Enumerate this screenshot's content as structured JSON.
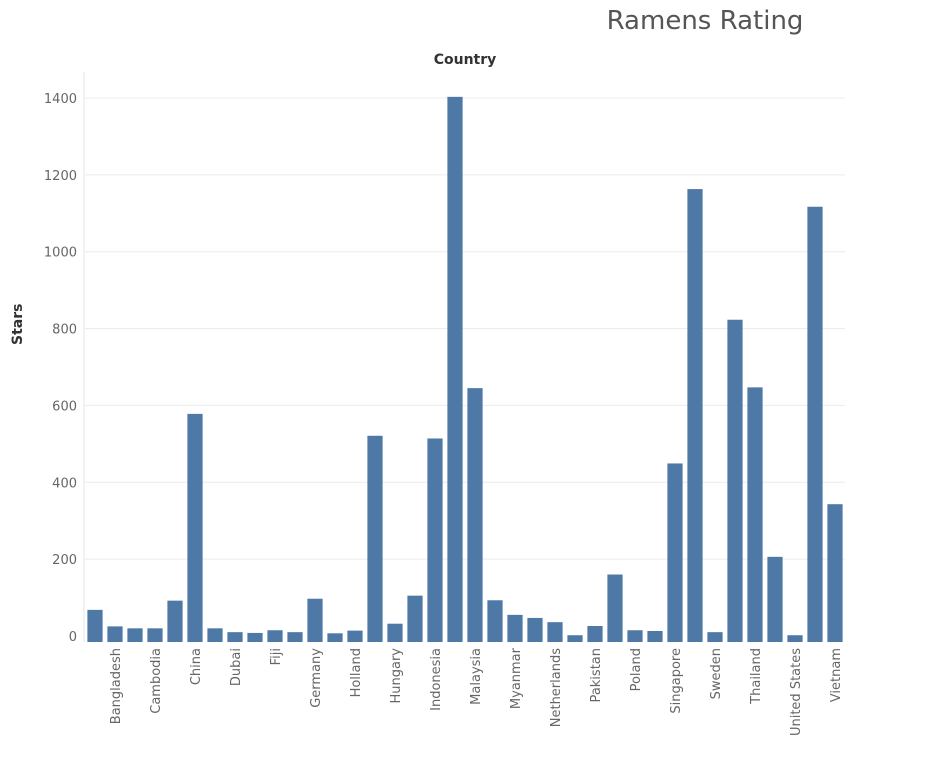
{
  "chart_data": {
    "type": "bar",
    "title": "Ramens Rating",
    "xlabel": "Country",
    "ylabel": "Stars",
    "ylim": [
      -20,
      1470
    ],
    "yticks": [
      0,
      200,
      400,
      600,
      800,
      1000,
      1200,
      1400
    ],
    "grid": true,
    "color": "#4e79a7",
    "categories": [
      "",
      "Bangladesh",
      "",
      "Cambodia",
      "",
      "China",
      "",
      "Dubai",
      "",
      "Fiji",
      "",
      "Germany",
      "",
      "Holland",
      "",
      "Hungary",
      "",
      "Indonesia",
      "",
      "Malaysia",
      "",
      "Myanmar",
      "",
      "Netherlands",
      "",
      "Pakistan",
      "",
      "Poland",
      "",
      "Singapore",
      "",
      "Sweden",
      "",
      "Thailand",
      "",
      "United States",
      "",
      "Vietnam"
    ],
    "values": [
      68,
      25,
      20,
      20,
      92,
      578,
      20,
      10,
      8,
      15,
      10,
      97,
      7,
      14,
      521,
      32,
      105,
      514,
      1403,
      645,
      93,
      55,
      47,
      36,
      2,
      26,
      160,
      15,
      13,
      449,
      1163,
      10,
      823,
      647,
      206,
      2,
      1117,
      343
    ]
  }
}
